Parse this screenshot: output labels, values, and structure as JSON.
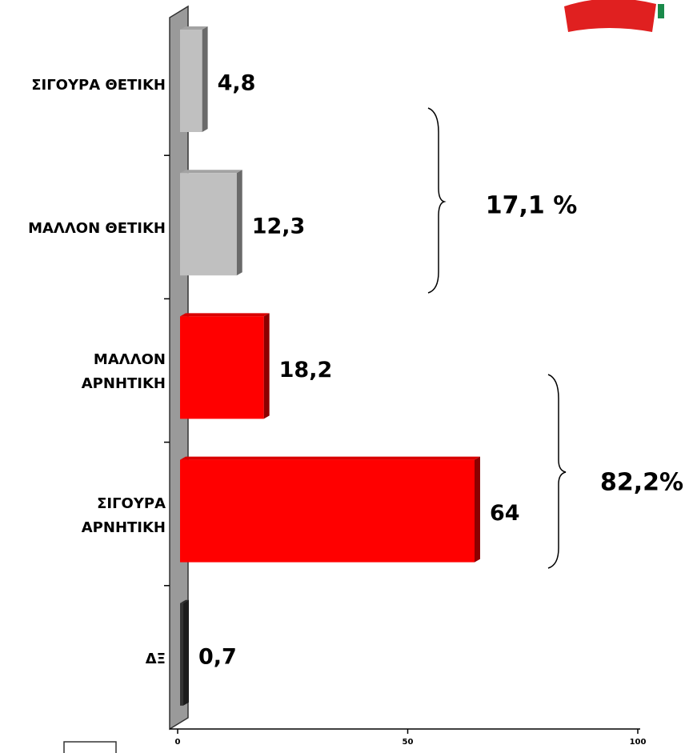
{
  "chart_data": {
    "type": "barh",
    "categories": [
      "ΣΙΓΟΥΡΑ ΘΕΤΙΚΗ",
      "ΜΑΛΛΟΝ ΘΕΤΙΚΗ",
      "ΜΑΛΛΟΝ\nΑΡΝΗΤΙΚΗ",
      "ΣΙΓΟΥΡΑ\nΑΡΝΗΤΙΚΗ",
      "ΔΞ"
    ],
    "values": [
      4.8,
      12.3,
      18.2,
      64,
      0.7
    ],
    "value_labels": [
      "4,8",
      "12,3",
      "18,2",
      "64",
      "0,7"
    ],
    "colors": [
      "#c0c0c0",
      "#c0c0c0",
      "#ff0000",
      "#ff0000",
      "#333333"
    ],
    "xlim": [
      0,
      100
    ],
    "xticks": [
      0,
      50,
      100
    ],
    "annotations": [
      "17,1 %",
      "82,2%"
    ]
  }
}
